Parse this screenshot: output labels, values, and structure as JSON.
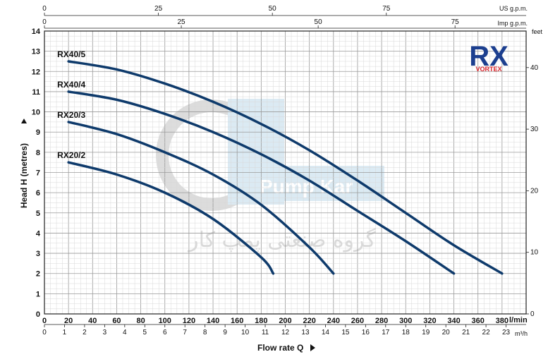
{
  "chart_data": {
    "type": "line",
    "y_title": "Head H (metres)",
    "x_title": "Flow rate Q",
    "x_unit_label": "l/min",
    "x_secondary_unit_label": "m³/h",
    "top_unit_label": "US g.p.m.",
    "top2_unit_label": "Imp g.p.m.",
    "right_unit_label": "feet",
    "xlim": [
      0,
      400
    ],
    "ylim": [
      0,
      14
    ],
    "grid": true,
    "x_ticks": [
      0,
      20,
      40,
      60,
      80,
      100,
      120,
      140,
      160,
      180,
      200,
      220,
      240,
      260,
      280,
      300,
      320,
      340,
      360,
      380
    ],
    "y_ticks": [
      0,
      1,
      2,
      3,
      4,
      5,
      6,
      7,
      8,
      9,
      10,
      11,
      12,
      13,
      14
    ],
    "m3h_ticks": [
      0,
      1,
      2,
      3,
      4,
      5,
      6,
      7,
      8,
      9,
      10,
      11,
      12,
      13,
      14,
      15,
      16,
      17,
      18,
      19,
      20,
      21,
      22,
      23
    ],
    "usgpm_ticks": [
      0,
      25,
      50,
      75
    ],
    "impgpm_ticks": [
      0,
      25,
      50,
      75
    ],
    "feet_ticks": [
      0,
      10,
      20,
      30,
      40
    ],
    "series": [
      {
        "name": "RX40/5",
        "x": [
          20,
          60,
          100,
          140,
          180,
          220,
          260,
          300,
          340,
          380
        ],
        "y": [
          12.5,
          12.1,
          11.4,
          10.5,
          9.4,
          8.1,
          6.6,
          5.0,
          3.4,
          2.0
        ]
      },
      {
        "name": "RX40/4",
        "x": [
          20,
          60,
          100,
          140,
          180,
          220,
          260,
          300,
          340
        ],
        "y": [
          11.0,
          10.6,
          9.9,
          9.0,
          7.9,
          6.6,
          5.1,
          3.6,
          2.0
        ]
      },
      {
        "name": "RX20/3",
        "x": [
          20,
          60,
          100,
          140,
          180,
          220,
          240
        ],
        "y": [
          9.5,
          8.9,
          8.0,
          6.9,
          5.4,
          3.3,
          2.0
        ]
      },
      {
        "name": "RX20/2",
        "x": [
          20,
          60,
          100,
          140,
          180,
          190
        ],
        "y": [
          7.5,
          6.9,
          6.0,
          4.7,
          2.8,
          2.0
        ]
      }
    ],
    "line_color": "#0e3a6b"
  },
  "logo": {
    "main": "RX",
    "sub": "VORTEX",
    "color_main": "#1c3f8f",
    "color_sub": "#d8232a"
  },
  "watermark": {
    "brand": "Pump Kar",
    "text": "گروه صنعتی پمپ کار"
  }
}
